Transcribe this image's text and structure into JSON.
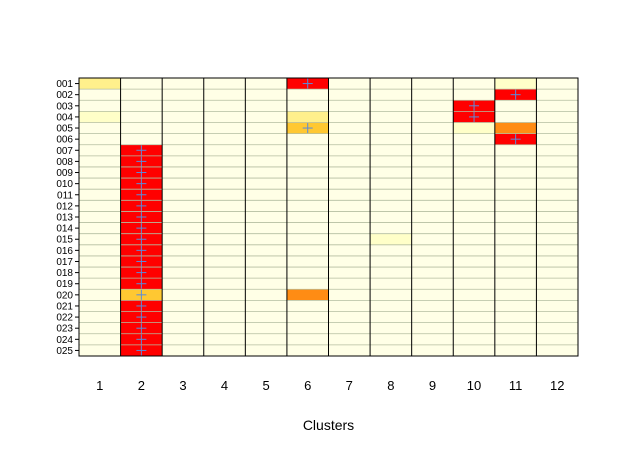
{
  "chart_data": {
    "type": "heatmap",
    "xlabel": "Clusters",
    "columns": [
      "1",
      "2",
      "3",
      "4",
      "5",
      "6",
      "7",
      "8",
      "9",
      "10",
      "11",
      "12"
    ],
    "rows": [
      "001",
      "002",
      "003",
      "004",
      "005",
      "006",
      "007",
      "008",
      "009",
      "010",
      "011",
      "012",
      "013",
      "014",
      "015",
      "016",
      "017",
      "018",
      "019",
      "020",
      "021",
      "022",
      "023",
      "024",
      "025"
    ],
    "levels": {
      "0": "#FFFFE6",
      "1": "#FFFFC8",
      "2": "#FFF08C",
      "3": "#FFC832",
      "4": "#FF8C14",
      "5": "#FF0000"
    },
    "cells": [
      {
        "row": "001",
        "col": 1,
        "level": 2
      },
      {
        "row": "001",
        "col": 6,
        "level": 5,
        "marker": true
      },
      {
        "row": "001",
        "col": 11,
        "level": 1
      },
      {
        "row": "002",
        "col": 11,
        "level": 5,
        "marker": true
      },
      {
        "row": "003",
        "col": 10,
        "level": 5,
        "marker": true
      },
      {
        "row": "004",
        "col": 1,
        "level": 1
      },
      {
        "row": "004",
        "col": 6,
        "level": 2
      },
      {
        "row": "004",
        "col": 10,
        "level": 5,
        "marker": true
      },
      {
        "row": "005",
        "col": 6,
        "level": 3,
        "marker": true
      },
      {
        "row": "005",
        "col": 10,
        "level": 1
      },
      {
        "row": "005",
        "col": 11,
        "level": 4
      },
      {
        "row": "006",
        "col": 11,
        "level": 5,
        "marker": true
      },
      {
        "row": "007",
        "col": 2,
        "level": 5,
        "marker": true
      },
      {
        "row": "008",
        "col": 2,
        "level": 5,
        "marker": true
      },
      {
        "row": "009",
        "col": 2,
        "level": 5,
        "marker": true
      },
      {
        "row": "010",
        "col": 2,
        "level": 5,
        "marker": true
      },
      {
        "row": "011",
        "col": 2,
        "level": 5,
        "marker": true
      },
      {
        "row": "012",
        "col": 2,
        "level": 5,
        "marker": true
      },
      {
        "row": "013",
        "col": 2,
        "level": 5,
        "marker": true
      },
      {
        "row": "014",
        "col": 2,
        "level": 5,
        "marker": true
      },
      {
        "row": "015",
        "col": 2,
        "level": 5,
        "marker": true
      },
      {
        "row": "015",
        "col": 8,
        "level": 1
      },
      {
        "row": "016",
        "col": 2,
        "level": 5,
        "marker": true
      },
      {
        "row": "017",
        "col": 2,
        "level": 5,
        "marker": true
      },
      {
        "row": "018",
        "col": 2,
        "level": 5,
        "marker": true
      },
      {
        "row": "019",
        "col": 2,
        "level": 5,
        "marker": true
      },
      {
        "row": "020",
        "col": 2,
        "level": 3,
        "marker": true
      },
      {
        "row": "020",
        "col": 6,
        "level": 4
      },
      {
        "row": "021",
        "col": 2,
        "level": 5,
        "marker": true
      },
      {
        "row": "022",
        "col": 2,
        "level": 5,
        "marker": true
      },
      {
        "row": "023",
        "col": 2,
        "level": 5,
        "marker": true
      },
      {
        "row": "024",
        "col": 2,
        "level": 5,
        "marker": true
      },
      {
        "row": "025",
        "col": 2,
        "level": 5,
        "marker": true
      }
    ],
    "colors": {
      "row_line": "#B4BEA0",
      "col_line": "#000000",
      "marker": "#5A8CDC"
    }
  }
}
